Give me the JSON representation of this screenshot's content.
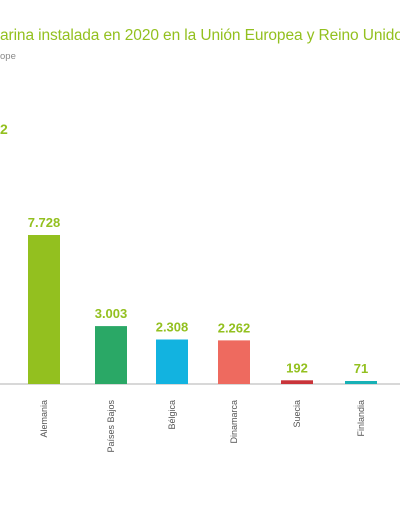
{
  "header": {
    "title": "arina instalada en 2020 en la Unión Europea y Reino Unido",
    "subtitle": "ope",
    "marker": "2"
  },
  "chart_data": {
    "type": "bar",
    "title": "arina instalada en 2020 en la Unión Europea y Reino Unido",
    "categories": [
      "Alemania",
      "Países Bajos",
      "Bélgica",
      "Dinamarca",
      "Suecia",
      "Finlandia"
    ],
    "values": [
      7728,
      3003,
      2308,
      2262,
      192,
      71
    ],
    "value_labels": [
      "7.728",
      "3.003",
      "2.308",
      "2.262",
      "192",
      "71"
    ],
    "colors": [
      "#93c01f",
      "#2aa866",
      "#12b3e0",
      "#ee6a5f",
      "#c9343a",
      "#17b1b6"
    ],
    "ylim": [
      0,
      10000
    ],
    "grid": false,
    "legend": "none"
  }
}
